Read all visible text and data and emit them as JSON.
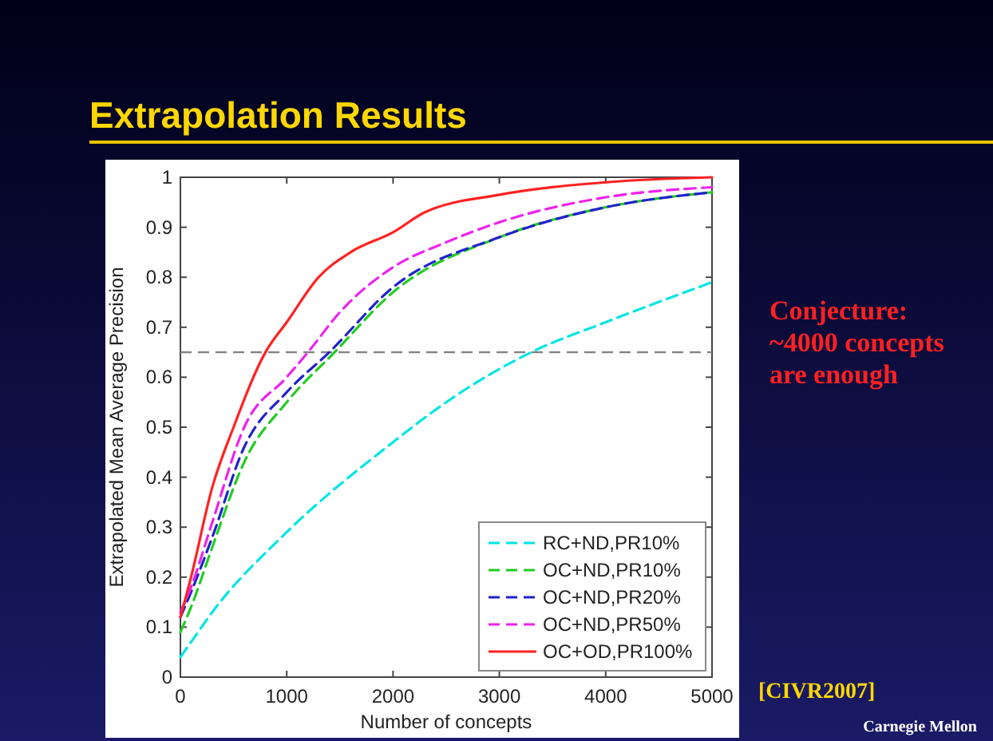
{
  "chart_data": {
    "type": "line",
    "title": "Extrapolation Results",
    "xlabel": "Number of concepts",
    "ylabel": "Extrapolated Mean Average Precision",
    "xlim": [
      0,
      5000
    ],
    "xticks": [
      0,
      1000,
      2000,
      3000,
      4000,
      5000
    ],
    "ylim": [
      0,
      1
    ],
    "yticks": [
      0,
      0.1,
      0.2,
      0.3,
      0.4,
      0.5,
      0.6,
      0.7,
      0.8,
      0.9,
      1
    ],
    "grid": false,
    "legend": "bottom right",
    "ref_lines": [
      {
        "axis": "y",
        "value": 0.65,
        "color": "#808080",
        "line_style": "dashed"
      }
    ],
    "annotations": [
      "Conjecture:\n~4000 concepts\nare enough",
      "[CIVR2007]",
      "Carnegie Mellon"
    ],
    "series": [
      {
        "name": "RC+ND,PR10%",
        "color": "#00e5e5",
        "line_style": "dashed",
        "x": [
          0,
          100,
          300,
          1000,
          2000,
          2500,
          3300,
          4000,
          5000
        ],
        "values": [
          0.04,
          0.07,
          0.13,
          0.29,
          0.47,
          0.55,
          0.65,
          0.71,
          0.79
        ]
      },
      {
        "name": "OC+ND,PR10%",
        "color": "#22cc22",
        "line_style": "dashed",
        "x": [
          0,
          100,
          300,
          600,
          1000,
          1450,
          2000,
          3000,
          4000,
          5000
        ],
        "values": [
          0.09,
          0.14,
          0.26,
          0.43,
          0.55,
          0.65,
          0.77,
          0.88,
          0.94,
          0.97
        ]
      },
      {
        "name": "OC+ND,PR20%",
        "color": "#2222cc",
        "line_style": "dashed",
        "x": [
          0,
          100,
          300,
          600,
          1000,
          1400,
          2000,
          3000,
          4000,
          5000
        ],
        "values": [
          0.12,
          0.17,
          0.28,
          0.46,
          0.57,
          0.65,
          0.78,
          0.88,
          0.94,
          0.97
        ]
      },
      {
        "name": "OC+ND,PR50%",
        "color": "#ee22ee",
        "line_style": "dashed",
        "x": [
          0,
          100,
          300,
          600,
          1000,
          1200,
          1500,
          2000,
          2500,
          3000,
          4000,
          5000
        ],
        "values": [
          0.13,
          0.18,
          0.31,
          0.5,
          0.6,
          0.65,
          0.73,
          0.82,
          0.87,
          0.91,
          0.96,
          0.98
        ]
      },
      {
        "name": "OC+OD,PR100%",
        "color": "#ff2222",
        "line_style": "solid",
        "x": [
          0,
          100,
          300,
          500,
          800,
          1000,
          1300,
          1600,
          2000,
          2300,
          3000,
          4000,
          5000
        ],
        "values": [
          0.12,
          0.2,
          0.38,
          0.5,
          0.65,
          0.71,
          0.8,
          0.85,
          0.89,
          0.93,
          0.965,
          0.99,
          1.0
        ]
      }
    ]
  }
}
